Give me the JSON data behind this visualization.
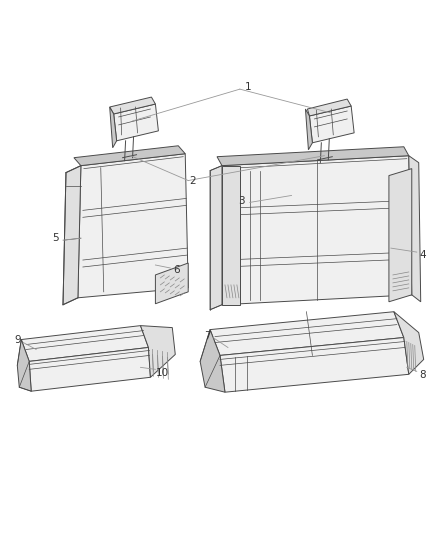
{
  "bg_color": "#ffffff",
  "line_color": "#4a4a4a",
  "fill_light": "#f0f0f0",
  "fill_mid": "#e0e0e0",
  "fill_dark": "#c8c8c8",
  "fill_darker": "#b8b8b8",
  "hatch_color": "#555555",
  "callout_line_color": "#999999",
  "callout_text_color": "#333333",
  "figsize": [
    4.38,
    5.33
  ],
  "dpi": 100
}
